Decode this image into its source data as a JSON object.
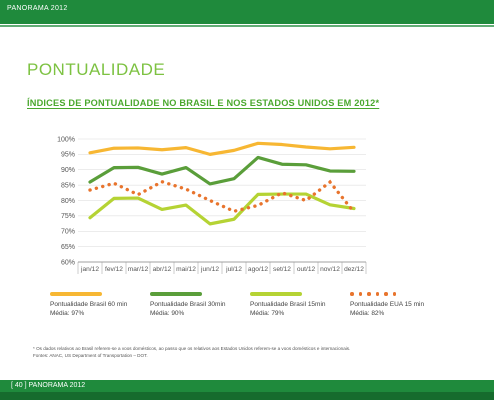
{
  "header": {
    "label": "PANORAMA 2012"
  },
  "section_title": "PONTUALIDADE",
  "chart_data": {
    "type": "line",
    "title": "ÍNDICES DE PONTUALIDADE NO BRASIL E NOS ESTADOS UNIDOS EM 2012*",
    "categories": [
      "jan/12",
      "fev/12",
      "mar/12",
      "abr/12",
      "mai/12",
      "jun/12",
      "jul/12",
      "ago/12",
      "set/12",
      "out/12",
      "nov/12",
      "dez/12"
    ],
    "ylim": [
      60,
      100
    ],
    "yticks": [
      "100%",
      "95%",
      "90%",
      "85%",
      "80%",
      "75%",
      "70%",
      "65%",
      "60%"
    ],
    "grid": true,
    "series": [
      {
        "name": "Pontualidade Brasil 60 min",
        "avg": "Média: 97%",
        "color": "#f7b733",
        "style": "solid",
        "values": [
          95.5,
          97.0,
          97.1,
          96.5,
          97.2,
          95.0,
          96.3,
          98.6,
          98.2,
          97.4,
          96.8,
          97.3
        ]
      },
      {
        "name": "Pontualidade Brasil 30min",
        "avg": "Média: 90%",
        "color": "#5a9e3a",
        "style": "solid",
        "values": [
          86.0,
          90.7,
          90.8,
          88.6,
          90.7,
          85.4,
          87.1,
          94.0,
          91.8,
          91.6,
          89.6,
          89.5
        ]
      },
      {
        "name": "Pontualidade Brasil 15min",
        "avg": "Média: 79%",
        "color": "#b5d334",
        "style": "solid",
        "values": [
          74.4,
          80.7,
          80.8,
          77.1,
          78.5,
          72.4,
          73.9,
          82.0,
          82.1,
          82.1,
          78.6,
          77.4
        ]
      },
      {
        "name": "Pontualidade EUA 15 min",
        "avg": "Média: 82%",
        "color": "#e8742d",
        "style": "dotted",
        "values": [
          83.4,
          85.6,
          81.9,
          86.1,
          83.7,
          80.0,
          76.5,
          78.4,
          82.5,
          80.0,
          86.0,
          76.2
        ]
      }
    ]
  },
  "footnote": {
    "line1": "* Os dados relativos ao Brasil referem-se a voos domésticos, ao passo que os relativos aos Estados Unidos referem-se a voos domésticos e internacionais.",
    "line2": "Fontes: ANAC, US Department of Transportation – DOT."
  },
  "footer": {
    "page_label": "[ 40 ]  PANORAMA 2012"
  }
}
